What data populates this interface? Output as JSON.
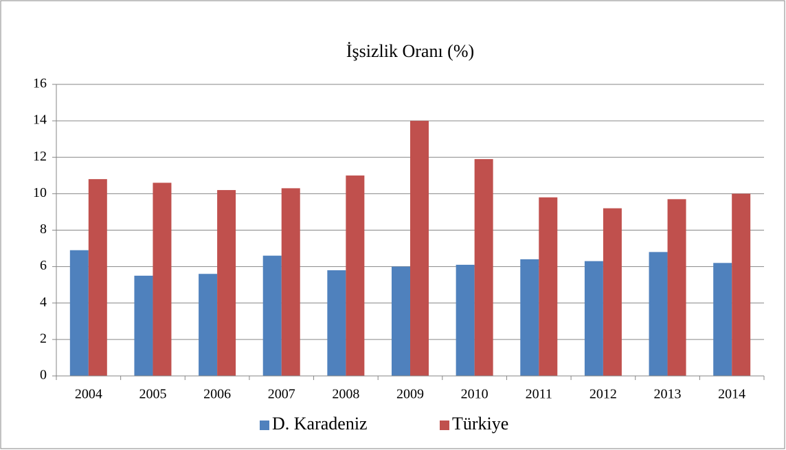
{
  "chart_data": {
    "type": "bar",
    "title": "İşsizlik Oranı (%)",
    "categories": [
      "2004",
      "2005",
      "2006",
      "2007",
      "2008",
      "2009",
      "2010",
      "2011",
      "2012",
      "2013",
      "2014"
    ],
    "series": [
      {
        "name": "D. Karadeniz",
        "color": "#4f81bd",
        "values": [
          6.9,
          5.5,
          5.6,
          6.6,
          5.8,
          6.0,
          6.1,
          6.4,
          6.3,
          6.8,
          6.2
        ]
      },
      {
        "name": "Türkiye",
        "color": "#c0504d",
        "values": [
          10.8,
          10.6,
          10.2,
          10.3,
          11.0,
          14.0,
          11.9,
          9.8,
          9.2,
          9.7,
          10.0
        ]
      }
    ],
    "ylim": [
      0,
      16
    ],
    "yticks": [
      0,
      2,
      4,
      6,
      8,
      10,
      12,
      14,
      16
    ],
    "grid": true,
    "legend": "bottom"
  }
}
